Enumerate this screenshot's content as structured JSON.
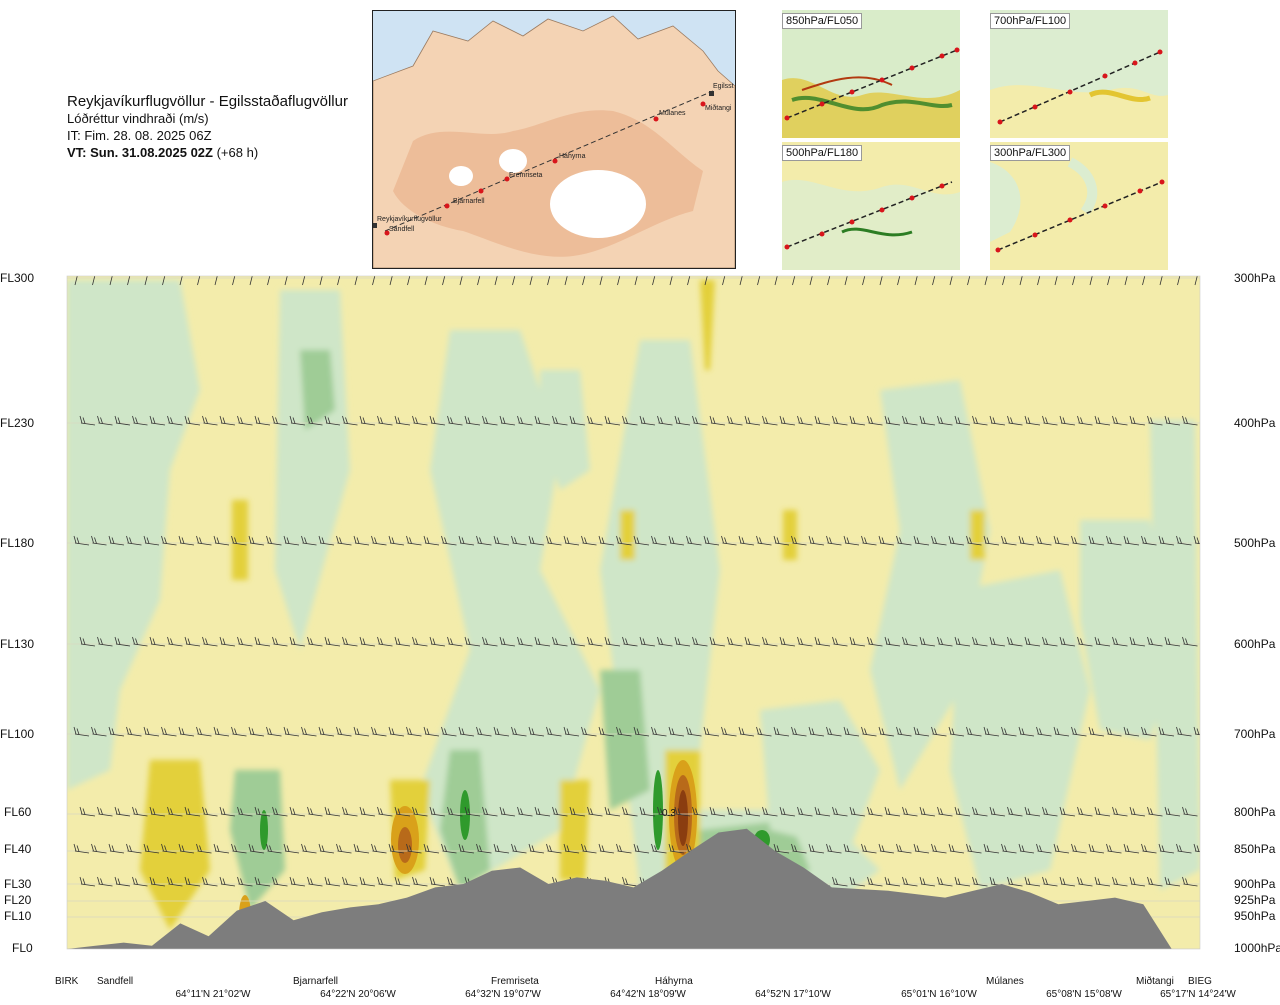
{
  "header": {
    "route": "Reykjavíkurflugvöllur - Egilsstaðaflugvöllur",
    "parameter": "Lóðréttur vindhraði (m/s)",
    "issue_time": "IT: Fim. 28. 08. 2025 06Z",
    "valid_time": "VT: Sun. 31.08.2025 02Z",
    "lead_time": "(+68 h)"
  },
  "route_map": {
    "waypoints": [
      "Reykjavíkurflugvöllur",
      "Sandfell",
      "Bjarnarfell",
      "Fremriseta",
      "Háhyrna",
      "Múlanes",
      "Miðtangi",
      "Egilsst"
    ]
  },
  "thumbnails": [
    {
      "label": "850hPa/FL050"
    },
    {
      "label": "700hPa/FL100"
    },
    {
      "label": "500hPa/FL180"
    },
    {
      "label": "300hPa/FL300"
    }
  ],
  "levels": [
    {
      "fl": "FL300",
      "hpa": "300hPa"
    },
    {
      "fl": "FL230",
      "hpa": "400hPa"
    },
    {
      "fl": "FL180",
      "hpa": "500hPa"
    },
    {
      "fl": "FL130",
      "hpa": "600hPa"
    },
    {
      "fl": "FL100",
      "hpa": "700hPa"
    },
    {
      "fl": "FL60",
      "hpa": "800hPa"
    },
    {
      "fl": "FL40",
      "hpa": "850hPa"
    },
    {
      "fl": "FL30",
      "hpa": "900hPa"
    },
    {
      "fl": "FL20",
      "hpa": "925hPa"
    },
    {
      "fl": "FL10",
      "hpa": "950hPa"
    },
    {
      "fl": "FL0",
      "hpa": "1000hPa"
    }
  ],
  "waypoint_labels": [
    "BIRK",
    "Sandfell",
    "Bjarnarfell",
    "Fremriseta",
    "Háhyrna",
    "Múlanes",
    "Miðtangi",
    "BIEG"
  ],
  "coordinate_labels": [
    "64°11'N 21°02'W",
    "64°22'N 20°06'W",
    "64°32'N 19°07'W",
    "64°42'N 18°09'W",
    "64°52'N 17°10'W",
    "65°01'N 16°10'W",
    "65°08'N 15°08'W",
    "65°17'N 14°24'W"
  ],
  "chart_data": {
    "type": "heatmap",
    "title": "Lóðréttur vindhraði (m/s)",
    "field": "vertical wind speed (m/s)",
    "y_levels_fl": [
      0,
      10,
      20,
      30,
      40,
      60,
      100,
      130,
      180,
      230,
      300
    ],
    "y_levels_hpa": [
      1000,
      950,
      925,
      900,
      850,
      800,
      700,
      600,
      500,
      400,
      300
    ],
    "annotation": "0.3",
    "colors": {
      "positive_weak": "#f3ecab",
      "positive_moderate": "#e3d03a",
      "positive_strong": "#d9a11a",
      "positive_extreme": "#8a3d10",
      "negative_weak": "#cfe6c8",
      "negative_moderate": "#9fcc96",
      "negative_strong": "#2f9a2c",
      "neutral": "#fbfbe6",
      "terrain": "#7d7d7d"
    },
    "terrain_profile_fl": [
      0,
      1,
      2,
      1,
      8,
      4,
      14,
      20,
      9,
      13,
      16,
      18,
      22,
      28,
      30,
      34,
      35,
      30,
      32,
      31,
      28,
      34,
      40,
      50,
      52,
      40,
      35,
      28,
      27,
      26,
      24,
      22,
      26,
      30,
      25,
      18,
      20,
      22,
      18,
      0,
      0
    ]
  }
}
